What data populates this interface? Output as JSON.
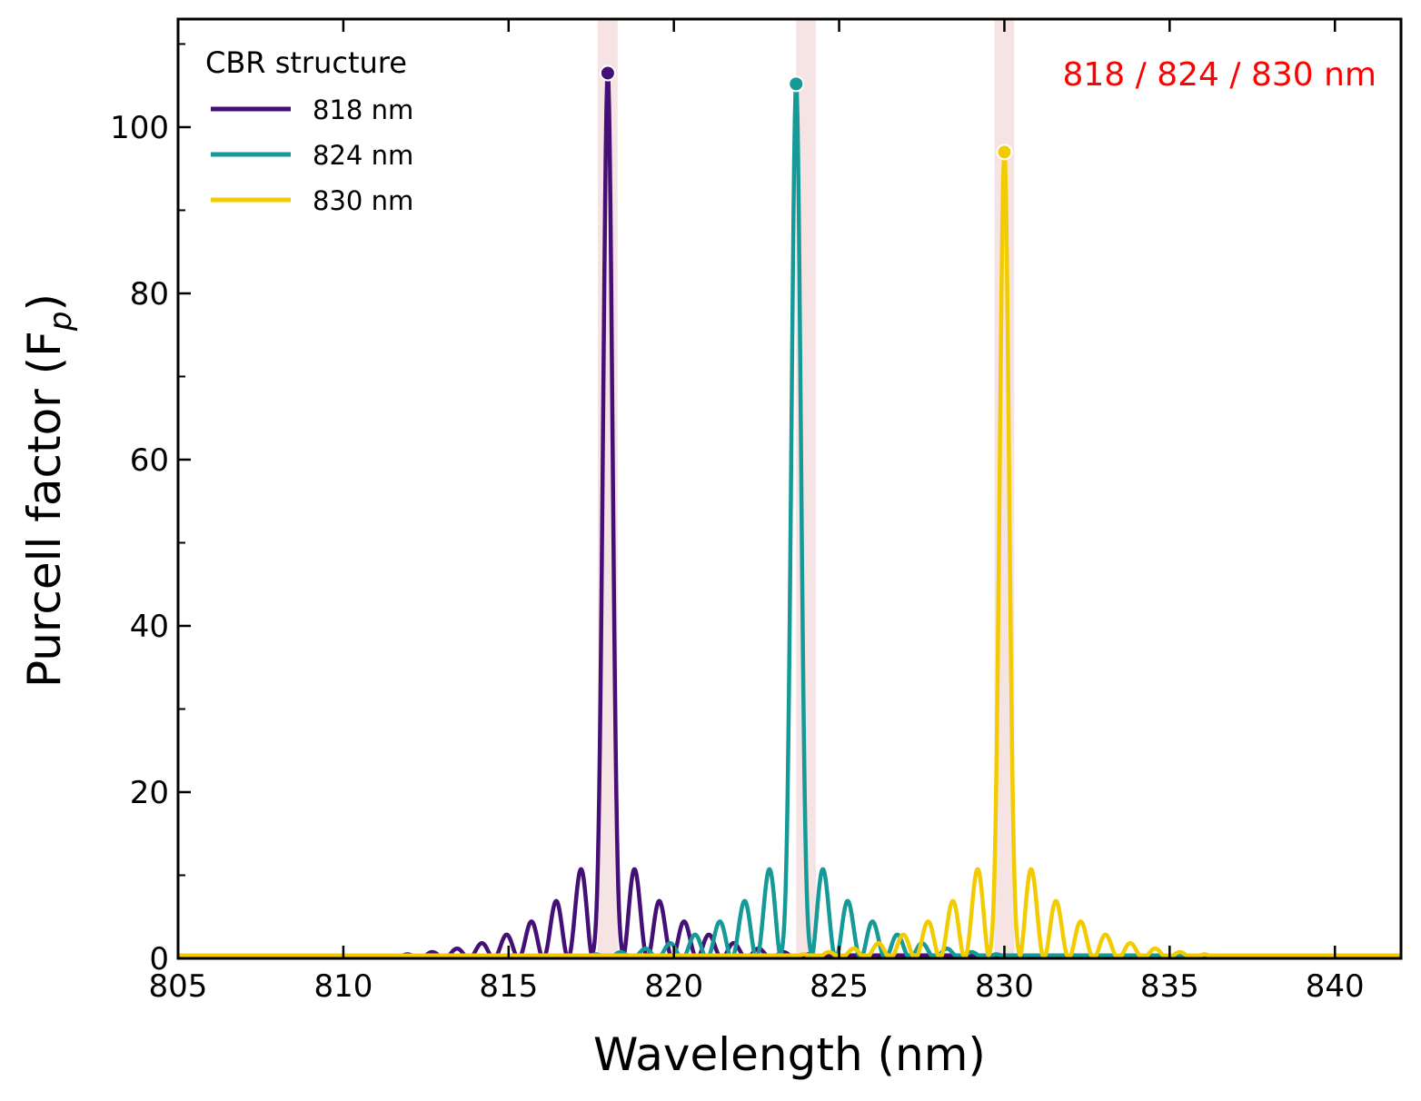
{
  "chart_data": {
    "type": "line",
    "xlabel": "Wavelength (nm)",
    "ylabel_main": "Purcell factor (F",
    "ylabel_sub": "p",
    "ylabel_close": ")",
    "xlim": [
      805,
      842
    ],
    "ylim": [
      0,
      113
    ],
    "xticks": [
      805,
      810,
      815,
      820,
      825,
      830,
      835,
      840
    ],
    "yticks": [
      0,
      20,
      40,
      60,
      80,
      100
    ],
    "yminor_ticks": [
      10,
      30,
      50,
      70,
      90,
      110
    ],
    "grid": false,
    "legend": {
      "title": "CBR structure",
      "position": "top-left"
    },
    "annotation": {
      "text": "818 / 824 / 830 nm",
      "color": "#ff0000",
      "position": "top-right"
    },
    "highlight_bands": [
      [
        817.7,
        818.3
      ],
      [
        823.7,
        824.3
      ],
      [
        829.7,
        830.3
      ]
    ],
    "highlight_color": "#f6e3e3",
    "series": [
      {
        "name": "818 nm",
        "color": "#440f76",
        "center": 818.0,
        "peak": 106.5
      },
      {
        "name": "824 nm",
        "color": "#159a98",
        "center": 823.7,
        "peak": 105.2
      },
      {
        "name": "830 nm",
        "color": "#f2cc00",
        "center": 830.0,
        "peak": 97.0
      }
    ]
  }
}
